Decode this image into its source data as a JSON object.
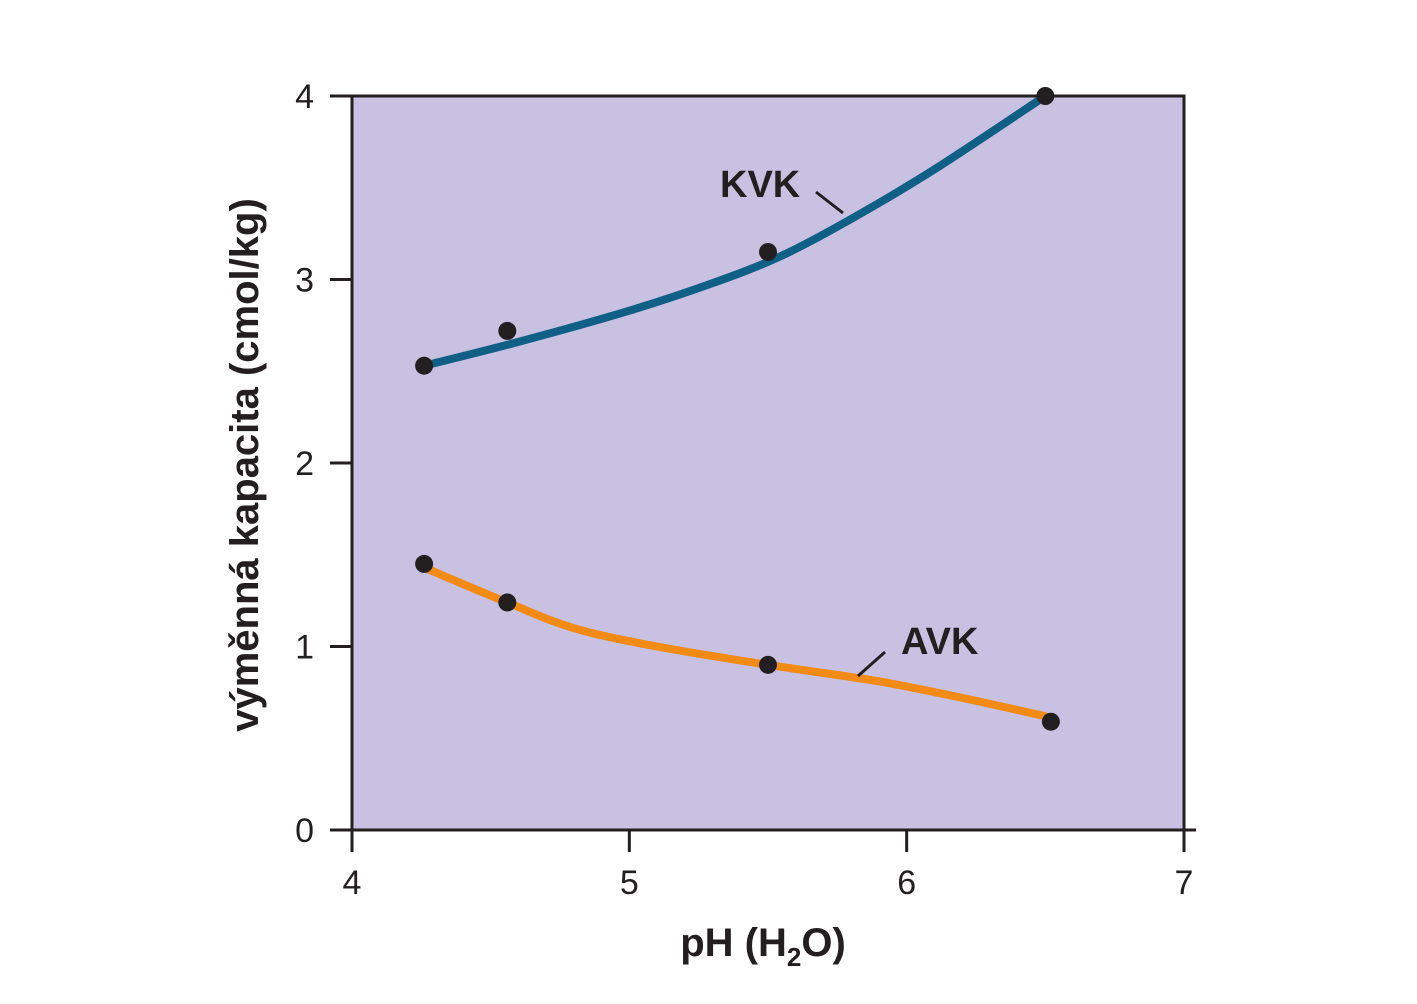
{
  "chart_data": {
    "type": "line",
    "xlabel": {
      "main": "pH (H",
      "sub": "2",
      "end": "O)"
    },
    "ylabel": "výměnná kapacita (cmol/kg)",
    "xlim": [
      4,
      7
    ],
    "ylim": [
      0,
      4
    ],
    "xticks": [
      4,
      5,
      6,
      7
    ],
    "yticks": [
      0,
      1,
      2,
      3,
      4
    ],
    "grid": false,
    "background_color": "#c8c1e1",
    "series": [
      {
        "name": "KVK",
        "color": "#0f5f86",
        "points": [
          {
            "x": 4.26,
            "y": 2.53
          },
          {
            "x": 4.56,
            "y": 2.72
          },
          {
            "x": 5.5,
            "y": 3.15
          },
          {
            "x": 6.5,
            "y": 4.0
          }
        ],
        "fit": [
          {
            "x": 4.26,
            "y": 2.53
          },
          {
            "x": 4.6,
            "y": 2.66
          },
          {
            "x": 5.0,
            "y": 2.83
          },
          {
            "x": 5.3,
            "y": 2.98
          },
          {
            "x": 5.55,
            "y": 3.13
          },
          {
            "x": 5.8,
            "y": 3.33
          },
          {
            "x": 6.1,
            "y": 3.6
          },
          {
            "x": 6.5,
            "y": 4.0
          }
        ]
      },
      {
        "name": "AVK",
        "color": "#f28a14",
        "points": [
          {
            "x": 4.26,
            "y": 1.45
          },
          {
            "x": 4.56,
            "y": 1.24
          },
          {
            "x": 5.5,
            "y": 0.9
          },
          {
            "x": 6.52,
            "y": 0.59
          }
        ],
        "fit": [
          {
            "x": 4.26,
            "y": 1.43
          },
          {
            "x": 4.56,
            "y": 1.24
          },
          {
            "x": 4.8,
            "y": 1.1
          },
          {
            "x": 5.1,
            "y": 1.0
          },
          {
            "x": 5.5,
            "y": 0.9
          },
          {
            "x": 5.9,
            "y": 0.81
          },
          {
            "x": 6.2,
            "y": 0.72
          },
          {
            "x": 6.5,
            "y": 0.62
          }
        ]
      }
    ],
    "point_color": "#231f20"
  }
}
